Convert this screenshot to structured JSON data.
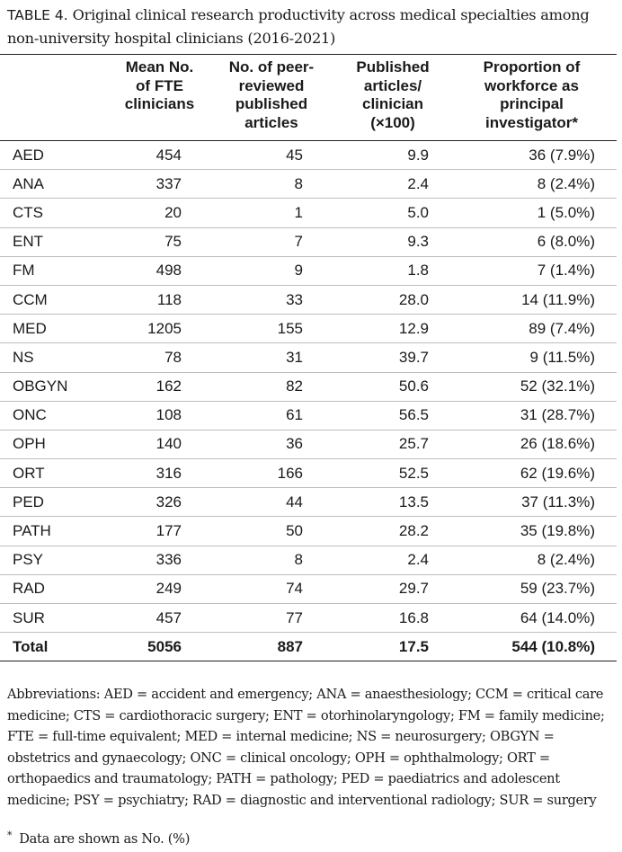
{
  "caption": {
    "label": "TABLE 4.",
    "title": "Original clinical research productivity across medical specialties among non-university hospital clinicians (2016-2021)"
  },
  "table": {
    "headers": [
      "",
      "Mean No. of FTE clinicians",
      "No. of peer-reviewed published articles",
      "Published articles/ clinician (×100)",
      "Proportion of workforce as principal investigator*"
    ],
    "rows": [
      [
        "AED",
        "454",
        "45",
        "9.9",
        "36 (7.9%)"
      ],
      [
        "ANA",
        "337",
        "8",
        "2.4",
        "8 (2.4%)"
      ],
      [
        "CTS",
        "20",
        "1",
        "5.0",
        "1 (5.0%)"
      ],
      [
        "ENT",
        "75",
        "7",
        "9.3",
        "6 (8.0%)"
      ],
      [
        "FM",
        "498",
        "9",
        "1.8",
        "7 (1.4%)"
      ],
      [
        "CCM",
        "118",
        "33",
        "28.0",
        "14 (11.9%)"
      ],
      [
        "MED",
        "1205",
        "155",
        "12.9",
        "89 (7.4%)"
      ],
      [
        "NS",
        "78",
        "31",
        "39.7",
        "9 (11.5%)"
      ],
      [
        "OBGYN",
        "162",
        "82",
        "50.6",
        "52 (32.1%)"
      ],
      [
        "ONC",
        "108",
        "61",
        "56.5",
        "31 (28.7%)"
      ],
      [
        "OPH",
        "140",
        "36",
        "25.7",
        "26 (18.6%)"
      ],
      [
        "ORT",
        "316",
        "166",
        "52.5",
        "62 (19.6%)"
      ],
      [
        "PED",
        "326",
        "44",
        "13.5",
        "37 (11.3%)"
      ],
      [
        "PATH",
        "177",
        "50",
        "28.2",
        "35 (19.8%)"
      ],
      [
        "PSY",
        "336",
        "8",
        "2.4",
        "8 (2.4%)"
      ],
      [
        "RAD",
        "249",
        "74",
        "29.7",
        "59 (23.7%)"
      ],
      [
        "SUR",
        "457",
        "77",
        "16.8",
        "64 (14.0%)"
      ]
    ],
    "total": [
      "Total",
      "5056",
      "887",
      "17.5",
      "544 (10.8%)"
    ]
  },
  "notes": {
    "abbreviations": "Abbreviations: AED = accident and emergency; ANA = anaesthesiology; CCM = critical care medicine; CTS = cardiothoracic surgery; ENT = otorhinolaryngology; FM = family medicine; FTE = full-time equivalent; MED = internal medicine; NS = neurosurgery; OBGYN = obstetrics and gynaecology; ONC = clinical oncology; OPH = ophthalmology; ORT = orthopaedics and traumatology; PATH = pathology; PED = paediatrics and adolescent medicine; PSY = psychiatry; RAD = diagnostic and interventional radiology; SUR = surgery",
    "footnote_mark": "*",
    "footnote": "Data are shown as No. (%)"
  }
}
